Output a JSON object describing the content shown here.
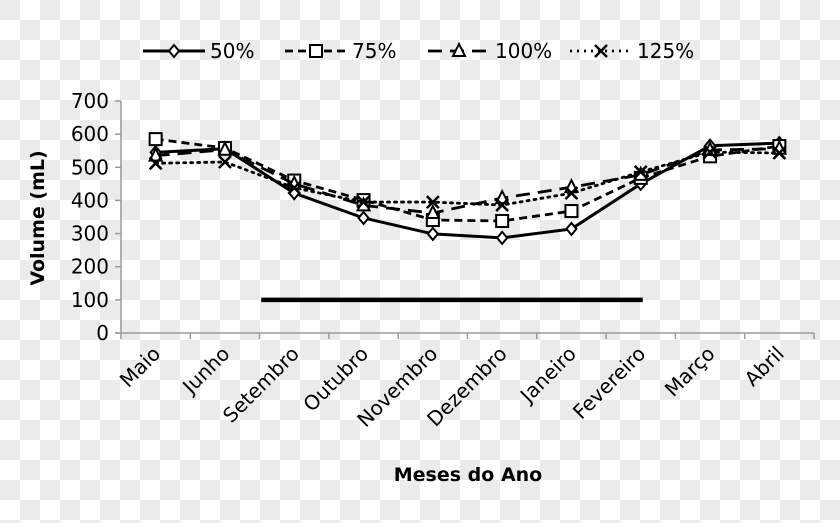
{
  "chart_data": {
    "type": "line",
    "title": "",
    "xlabel": "Meses do Ano",
    "ylabel": "Volume (mL)",
    "ylim": [
      0,
      700
    ],
    "yticks": [
      0,
      100,
      200,
      300,
      400,
      500,
      600,
      700
    ],
    "grid": false,
    "legend_position": "top",
    "categories": [
      "Maio",
      "Junho",
      "Setembro",
      "Outubro",
      "Novembro",
      "Dezembro",
      "Janeiro",
      "Fevereiro",
      "Março",
      "Abril"
    ],
    "series": [
      {
        "name": "50%",
        "line": "solid",
        "marker": "diamond",
        "values": [
          545,
          556,
          422,
          347,
          299,
          287,
          314,
          450,
          565,
          573
        ]
      },
      {
        "name": "75%",
        "line": "dashed",
        "marker": "square",
        "values": [
          585,
          558,
          460,
          401,
          341,
          338,
          368,
          468,
          533,
          564
        ]
      },
      {
        "name": "100%",
        "line": "long-dash",
        "marker": "triangle",
        "values": [
          535,
          553,
          450,
          385,
          362,
          407,
          440,
          477,
          552,
          556
        ]
      },
      {
        "name": "125%",
        "line": "dotted",
        "marker": "x",
        "values": [
          512,
          516,
          438,
          395,
          395,
          386,
          422,
          486,
          546,
          543
        ]
      }
    ],
    "annotations": [
      {
        "type": "horizontal-bar",
        "y": 100,
        "x_start": "Setembro",
        "x_end": "Fevereiro"
      }
    ]
  }
}
